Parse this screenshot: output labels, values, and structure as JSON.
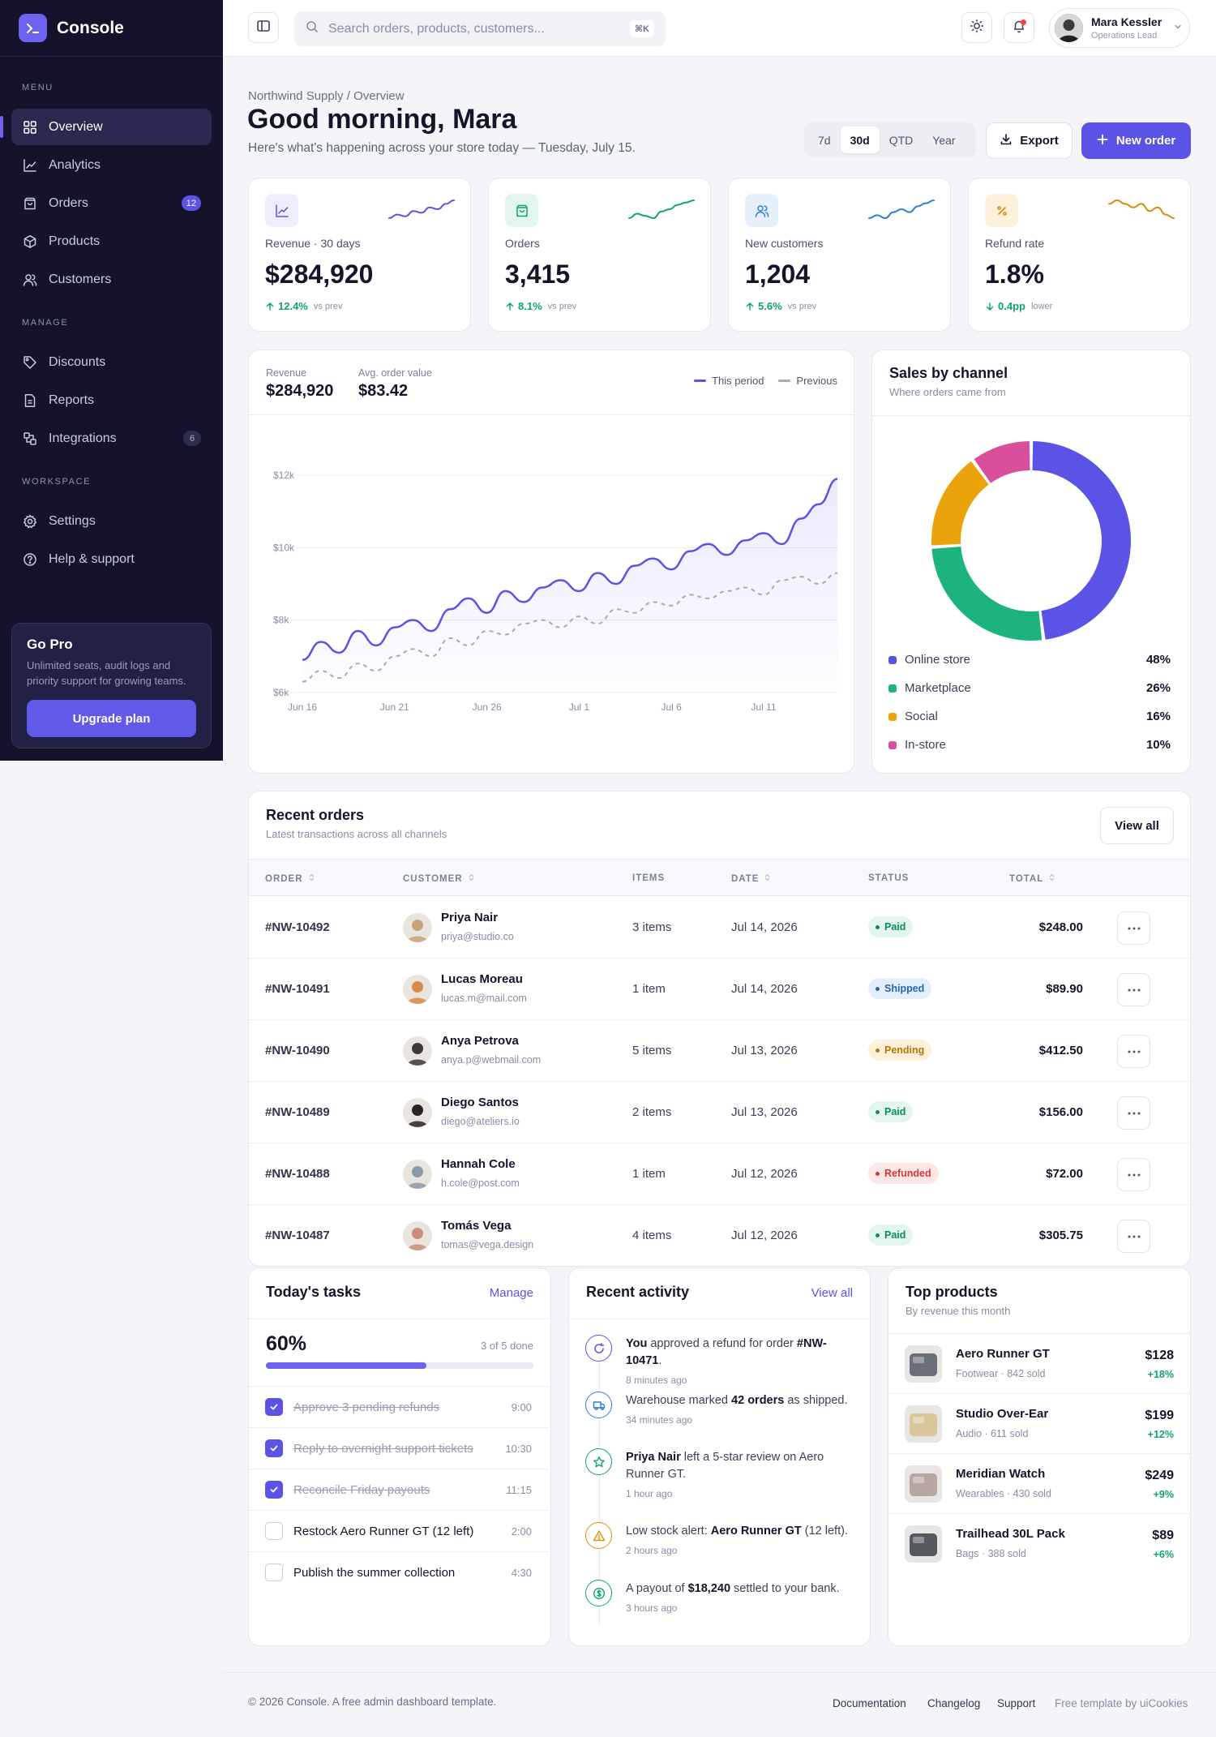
{
  "app": {
    "name": "Console",
    "logo_glyph": ">_"
  },
  "sidebar": {
    "sections": [
      "MENU",
      "MANAGE",
      "WORKSPACE"
    ],
    "menu": [
      {
        "label": "Overview",
        "icon": "grid-icon",
        "active": true
      },
      {
        "label": "Analytics",
        "icon": "chart-icon"
      },
      {
        "label": "Orders",
        "icon": "bag-icon",
        "count": "12"
      },
      {
        "label": "Products",
        "icon": "box-icon"
      },
      {
        "label": "Customers",
        "icon": "users-icon"
      }
    ],
    "manage": [
      {
        "label": "Discounts",
        "icon": "tag-icon"
      },
      {
        "label": "Reports",
        "icon": "file-icon"
      },
      {
        "label": "Integrations",
        "icon": "puzzle-icon",
        "count": "6"
      }
    ],
    "workspace": [
      {
        "label": "Settings",
        "icon": "gear-icon"
      },
      {
        "label": "Help & support",
        "icon": "help-icon"
      }
    ],
    "pro": {
      "title": "Go Pro",
      "desc": "Unlimited seats, audit logs and priority support for growing teams.",
      "button": "Upgrade plan"
    }
  },
  "topbar": {
    "search_placeholder": "Search orders, products, customers...",
    "shortcut": "⌘K",
    "user": {
      "name": "Mara Kessler",
      "role": "Operations Lead"
    }
  },
  "header": {
    "breadcrumb": "Northwind Supply / Overview",
    "greeting": "Good morning, Mara",
    "subtitle": "Here's what's happening across your store today — Tuesday, July 15.",
    "ranges": [
      "7d",
      "30d",
      "QTD",
      "Year"
    ],
    "selected_range": "30d",
    "export_label": "Export",
    "new_order_label": "New order"
  },
  "stats": [
    {
      "label": "Revenue · 30 days",
      "value": "$284,920",
      "delta": "12.4%",
      "delta_note": "vs prev",
      "direction": "up",
      "color": "#5b53e6",
      "bg": "#eeeefe",
      "icon": "chart-icon",
      "spark": [
        5,
        6,
        5.5,
        7,
        6.5,
        8,
        7.5,
        9,
        10
      ]
    },
    {
      "label": "Orders",
      "value": "3,415",
      "delta": "8.1%",
      "delta_note": "vs prev",
      "direction": "up",
      "color": "#10a36b",
      "bg": "#e3f6ee",
      "icon": "bag-icon",
      "spark": [
        5,
        6,
        5.5,
        5,
        6.5,
        7,
        8,
        8.5,
        9
      ]
    },
    {
      "label": "New customers",
      "value": "1,204",
      "delta": "5.6%",
      "delta_note": "vs prev",
      "direction": "up",
      "color": "#2f7fd9",
      "bg": "#e6f0fb",
      "icon": "users-icon",
      "spark": [
        5,
        5.5,
        5,
        6,
        6.5,
        6,
        7,
        7.5,
        8
      ]
    },
    {
      "label": "Refund rate",
      "value": "1.8%",
      "delta": "0.4pp",
      "delta_note": "lower",
      "direction": "down",
      "color": "#d98b0b",
      "bg": "#fdf1dc",
      "icon": "percent-icon",
      "spark": [
        9,
        9.5,
        9,
        8.5,
        9,
        8,
        8.5,
        7.5,
        7
      ]
    }
  ],
  "revenue_card": {
    "revenue_label": "Revenue",
    "revenue_value": "$284,920",
    "aov_label": "Avg. order value",
    "aov_value": "$83.42",
    "legend_current": "This period",
    "legend_previous": "Previous",
    "color_current": "#5b53e6",
    "color_previous": "#a7a9bd"
  },
  "chart_data": [
    {
      "type": "line",
      "x": [
        "Jun 16",
        "Jun 17",
        "Jun 18",
        "Jun 19",
        "Jun 20",
        "Jun 21",
        "Jun 22",
        "Jun 23",
        "Jun 24",
        "Jun 25",
        "Jun 26",
        "Jun 27",
        "Jun 28",
        "Jun 29",
        "Jun 30",
        "Jul 1",
        "Jul 2",
        "Jul 3",
        "Jul 4",
        "Jul 5",
        "Jul 6",
        "Jul 7",
        "Jul 8",
        "Jul 9",
        "Jul 10",
        "Jul 11",
        "Jul 12",
        "Jul 13",
        "Jul 14",
        "Jul 15"
      ],
      "xticks": [
        "Jun 16",
        "Jun 21",
        "Jun 26",
        "Jul 1",
        "Jul 6",
        "Jul 11"
      ],
      "yticks": [
        "$6k",
        "$8k",
        "$10k",
        "$12k"
      ],
      "ylim": [
        6000,
        12000
      ],
      "series": [
        {
          "name": "This period",
          "values": [
            6900,
            7400,
            7100,
            7700,
            7300,
            7800,
            8000,
            7700,
            8300,
            8600,
            8200,
            8800,
            8500,
            8900,
            9100,
            8800,
            9300,
            9000,
            9500,
            9700,
            9400,
            9900,
            10100,
            9800,
            10200,
            10400,
            10100,
            10800,
            11200,
            11900
          ]
        },
        {
          "name": "Previous",
          "values": [
            6300,
            6600,
            6400,
            6800,
            6600,
            7000,
            7200,
            7000,
            7500,
            7300,
            7700,
            7600,
            7900,
            8000,
            7800,
            8100,
            7900,
            8300,
            8200,
            8500,
            8400,
            8700,
            8600,
            8800,
            8900,
            8700,
            9100,
            9200,
            9000,
            9300
          ]
        }
      ]
    },
    {
      "type": "pie",
      "title": "Sales by channel",
      "subtitle": "Where orders came from",
      "categories": [
        "Online store",
        "Marketplace",
        "Social",
        "In-store"
      ],
      "values": [
        48,
        26,
        16,
        10
      ],
      "colors": [
        "#5b53e6",
        "#1cb47c",
        "#eba30c",
        "#d94f9c"
      ],
      "labels": [
        "48%",
        "26%",
        "16%",
        "10%"
      ]
    }
  ],
  "orders": {
    "title": "Recent orders",
    "subtitle": "Latest transactions across all channels",
    "view_all": "View all",
    "columns": [
      "ORDER",
      "CUSTOMER",
      "ITEMS",
      "DATE",
      "STATUS",
      "TOTAL"
    ],
    "rows": [
      {
        "id": "#NW-10492",
        "name": "Priya Nair",
        "email": "priya@studio.co",
        "items": "3 items",
        "date": "Jul 14, 2026",
        "status": "Paid",
        "total": "$248.00",
        "avatar": "#c9a27b"
      },
      {
        "id": "#NW-10491",
        "name": "Lucas Moreau",
        "email": "lucas.m@mail.com",
        "items": "1 item",
        "date": "Jul 14, 2026",
        "status": "Shipped",
        "total": "$89.90",
        "avatar": "#d88a4a"
      },
      {
        "id": "#NW-10490",
        "name": "Anya Petrova",
        "email": "anya.p@webmail.com",
        "items": "5 items",
        "date": "Jul 13, 2026",
        "status": "Pending",
        "total": "$412.50",
        "avatar": "#3a3a3a"
      },
      {
        "id": "#NW-10489",
        "name": "Diego Santos",
        "email": "diego@ateliers.io",
        "items": "2 items",
        "date": "Jul 13, 2026",
        "status": "Paid",
        "total": "$156.00",
        "avatar": "#2a2320"
      },
      {
        "id": "#NW-10488",
        "name": "Hannah Cole",
        "email": "h.cole@post.com",
        "items": "1 item",
        "date": "Jul 12, 2026",
        "status": "Refunded",
        "total": "$72.00",
        "avatar": "#8c9aa8"
      },
      {
        "id": "#NW-10487",
        "name": "Tomás Vega",
        "email": "tomas@vega.design",
        "items": "4 items",
        "date": "Jul 12, 2026",
        "status": "Paid",
        "total": "$305.75",
        "avatar": "#c98e7a"
      }
    ]
  },
  "status_styles": {
    "Paid": {
      "bg": "#e3f6ee",
      "fg": "#0f8a5c"
    },
    "Shipped": {
      "bg": "#e3effc",
      "fg": "#2566b8"
    },
    "Pending": {
      "bg": "#fdf1dc",
      "fg": "#b87605"
    },
    "Refunded": {
      "bg": "#fde6e6",
      "fg": "#d23a3a"
    }
  },
  "tasks": {
    "title": "Today's tasks",
    "manage": "Manage",
    "percent": "60%",
    "progress": 0.6,
    "done_label": "3 of 5 done",
    "items": [
      {
        "label": "Approve 3 pending refunds",
        "time": "9:00",
        "done": true
      },
      {
        "label": "Reply to overnight support tickets",
        "time": "10:30",
        "done": true
      },
      {
        "label": "Reconcile Friday payouts",
        "time": "11:15",
        "done": true
      },
      {
        "label": "Restock Aero Runner GT (12 left)",
        "time": "2:00",
        "done": false
      },
      {
        "label": "Publish the summer collection",
        "time": "4:30",
        "done": false
      }
    ]
  },
  "activity": {
    "title": "Recent activity",
    "view_all": "View all",
    "items": [
      {
        "icon": "refresh-icon",
        "color": "#5b53e6",
        "parts": [
          [
            "b",
            "You"
          ],
          [
            "t",
            " approved a refund for order "
          ],
          [
            "b",
            "#NW-10471"
          ],
          [
            "t",
            "."
          ]
        ],
        "time": "8 minutes ago"
      },
      {
        "icon": "truck-icon",
        "color": "#2f7fd9",
        "parts": [
          [
            "t",
            "Warehouse marked "
          ],
          [
            "b",
            "42 orders"
          ],
          [
            "t",
            " as shipped."
          ]
        ],
        "time": "34 minutes ago"
      },
      {
        "icon": "star-icon",
        "color": "#10a36b",
        "parts": [
          [
            "b",
            "Priya Nair"
          ],
          [
            "t",
            " left a 5-star review on Aero Runner GT."
          ]
        ],
        "time": "1 hour ago"
      },
      {
        "icon": "warning-icon",
        "color": "#e3900b",
        "parts": [
          [
            "t",
            "Low stock alert: "
          ],
          [
            "b",
            "Aero Runner GT"
          ],
          [
            "t",
            " (12 left)."
          ]
        ],
        "time": "2 hours ago"
      },
      {
        "icon": "dollar-icon",
        "color": "#10a36b",
        "parts": [
          [
            "t",
            "A payout of "
          ],
          [
            "b",
            "$18,240"
          ],
          [
            "t",
            " settled to your bank."
          ]
        ],
        "time": "3 hours ago"
      }
    ]
  },
  "products": {
    "title": "Top products",
    "subtitle": "By revenue this month",
    "items": [
      {
        "name": "Aero Runner GT",
        "meta": "Footwear · 842 sold",
        "price": "$128",
        "growth": "+18%",
        "img": "#6b6f78"
      },
      {
        "name": "Studio Over-Ear",
        "meta": "Audio · 611 sold",
        "price": "$199",
        "growth": "+12%",
        "img": "#d9c79a"
      },
      {
        "name": "Meridian Watch",
        "meta": "Wearables · 430 sold",
        "price": "$249",
        "growth": "+9%",
        "img": "#b9a6a0"
      },
      {
        "name": "Trailhead 30L Pack",
        "meta": "Bags · 388 sold",
        "price": "$89",
        "growth": "+6%",
        "img": "#55595f"
      }
    ]
  },
  "footer": {
    "copyright": "© 2026 Console. A free admin dashboard template.",
    "links": [
      "Documentation",
      "Changelog",
      "Support"
    ],
    "credit": "Free template by uiCookies"
  }
}
